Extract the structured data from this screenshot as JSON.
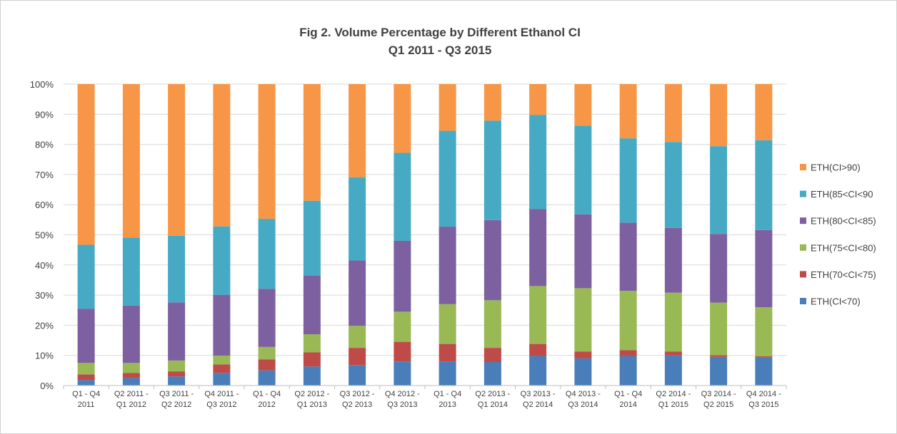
{
  "chart_data": {
    "type": "bar",
    "stacked": true,
    "title": "Fig 2. Volume Percentage by Different Ethanol CI",
    "subtitle": "Q1 2011 - Q3 2015",
    "xlabel": "",
    "ylabel": "",
    "ylim": [
      0,
      100
    ],
    "yticks": [
      "0%",
      "10%",
      "20%",
      "30%",
      "40%",
      "50%",
      "60%",
      "70%",
      "80%",
      "90%",
      "100%"
    ],
    "grid": true,
    "legend_position": "right",
    "categories": [
      [
        "Q1 - Q4",
        "2011"
      ],
      [
        "Q2 2011 -",
        "Q1 2012"
      ],
      [
        "Q3 2011 -",
        "Q2 2012"
      ],
      [
        "Q4 2011 -",
        "Q3 2012"
      ],
      [
        "Q1 - Q4",
        "2012"
      ],
      [
        "Q2 2012 -",
        "Q1 2013"
      ],
      [
        "Q3 2012 -",
        "Q2 2013"
      ],
      [
        "Q4 2012 -",
        "Q3 2013"
      ],
      [
        "Q1 - Q4",
        "2013"
      ],
      [
        "Q2 2013 -",
        "Q1 2014"
      ],
      [
        "Q3 2013 -",
        "Q2 2014"
      ],
      [
        "Q4 2013 -",
        "Q3 2014"
      ],
      [
        "Q1 - Q4",
        "2014"
      ],
      [
        "Q2 2014 -",
        "Q1 2015"
      ],
      [
        "Q3 2014 -",
        "Q2 2015"
      ],
      [
        "Q4 2014 -",
        "Q3 2015"
      ]
    ],
    "series": [
      {
        "name": "ETH(CI<70)",
        "color": "#4a7ebb",
        "values": [
          1.8,
          2.5,
          3.0,
          4.2,
          5.0,
          6.3,
          6.8,
          8.0,
          8.0,
          7.8,
          9.8,
          9.0,
          9.8,
          10.0,
          9.5,
          9.3
        ]
      },
      {
        "name": "ETH(70<CI<75)",
        "color": "#be4b48",
        "values": [
          1.9,
          1.7,
          1.7,
          2.8,
          3.7,
          4.7,
          5.7,
          6.5,
          5.8,
          4.7,
          4.0,
          2.3,
          1.9,
          1.3,
          0.6,
          0.4
        ]
      },
      {
        "name": "ETH(75<CI<80)",
        "color": "#98b954",
        "values": [
          3.8,
          3.3,
          3.6,
          2.9,
          4.1,
          6.0,
          7.3,
          10.0,
          13.2,
          15.8,
          19.2,
          21.0,
          19.7,
          19.5,
          17.4,
          16.3
        ]
      },
      {
        "name": "ETH(80<CI<85)",
        "color": "#7d60a0",
        "values": [
          18.0,
          19.0,
          19.3,
          20.2,
          19.3,
          19.5,
          21.7,
          23.5,
          25.7,
          26.6,
          25.6,
          24.5,
          22.6,
          21.5,
          22.8,
          25.6
        ]
      },
      {
        "name": "ETH(85<CI<90",
        "color": "#46aac5",
        "values": [
          21.2,
          22.6,
          22.1,
          22.7,
          23.2,
          24.8,
          27.6,
          29.2,
          31.8,
          33.0,
          31.2,
          29.4,
          28.0,
          28.5,
          29.1,
          29.8
        ]
      },
      {
        "name": "ETH(CI>90)",
        "color": "#f79646",
        "values": [
          53.3,
          50.9,
          50.3,
          47.2,
          44.7,
          38.7,
          30.9,
          22.8,
          15.5,
          12.1,
          10.2,
          13.8,
          18.0,
          19.2,
          20.6,
          18.6
        ]
      }
    ],
    "legend_order": [
      "ETH(CI>90)",
      "ETH(85<CI<90",
      "ETH(80<CI<85)",
      "ETH(75<CI<80)",
      "ETH(70<CI<75)",
      "ETH(CI<70)"
    ]
  }
}
